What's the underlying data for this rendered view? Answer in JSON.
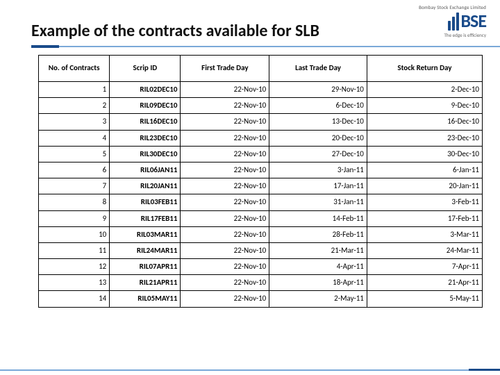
{
  "brand": {
    "top_text": "Bombay Stock Exchange Limited",
    "letters": "BSE",
    "tagline": "The edge is efficiency",
    "color": "#1a4b8a"
  },
  "title": "Example of the contracts available for SLB",
  "table": {
    "columns": [
      "No. of Contracts",
      "Scrip ID",
      "First Trade Day",
      "Last Trade Day",
      "Stock Return Day"
    ],
    "rows": [
      [
        "1",
        "RIL02DEC10",
        "22-Nov-10",
        "29-Nov-10",
        "2-Dec-10"
      ],
      [
        "2",
        "RIL09DEC10",
        "22-Nov-10",
        "6-Dec-10",
        "9-Dec-10"
      ],
      [
        "3",
        "RIL16DEC10",
        "22-Nov-10",
        "13-Dec-10",
        "16-Dec-10"
      ],
      [
        "4",
        "RIL23DEC10",
        "22-Nov-10",
        "20-Dec-10",
        "23-Dec-10"
      ],
      [
        "5",
        "RIL30DEC10",
        "22-Nov-10",
        "27-Dec-10",
        "30-Dec-10"
      ],
      [
        "6",
        "RIL06JAN11",
        "22-Nov-10",
        "3-Jan-11",
        "6-Jan-11"
      ],
      [
        "7",
        "RIL20JAN11",
        "22-Nov-10",
        "17-Jan-11",
        "20-Jan-11"
      ],
      [
        "8",
        "RIL03FEB11",
        "22-Nov-10",
        "31-Jan-11",
        "3-Feb-11"
      ],
      [
        "9",
        "RIL17FEB11",
        "22-Nov-10",
        "14-Feb-11",
        "17-Feb-11"
      ],
      [
        "10",
        "RIL03MAR11",
        "22-Nov-10",
        "28-Feb-11",
        "3-Mar-11"
      ],
      [
        "11",
        "RIL24MAR11",
        "22-Nov-10",
        "21-Mar-11",
        "24-Mar-11"
      ],
      [
        "12",
        "RIL07APR11",
        "22-Nov-10",
        "4-Apr-11",
        "7-Apr-11"
      ],
      [
        "13",
        "RIL21APR11",
        "22-Nov-10",
        "18-Apr-11",
        "21-Apr-11"
      ],
      [
        "14",
        "RIL05MAY11",
        "22-Nov-10",
        "2-May-11",
        "5-May-11"
      ]
    ]
  }
}
